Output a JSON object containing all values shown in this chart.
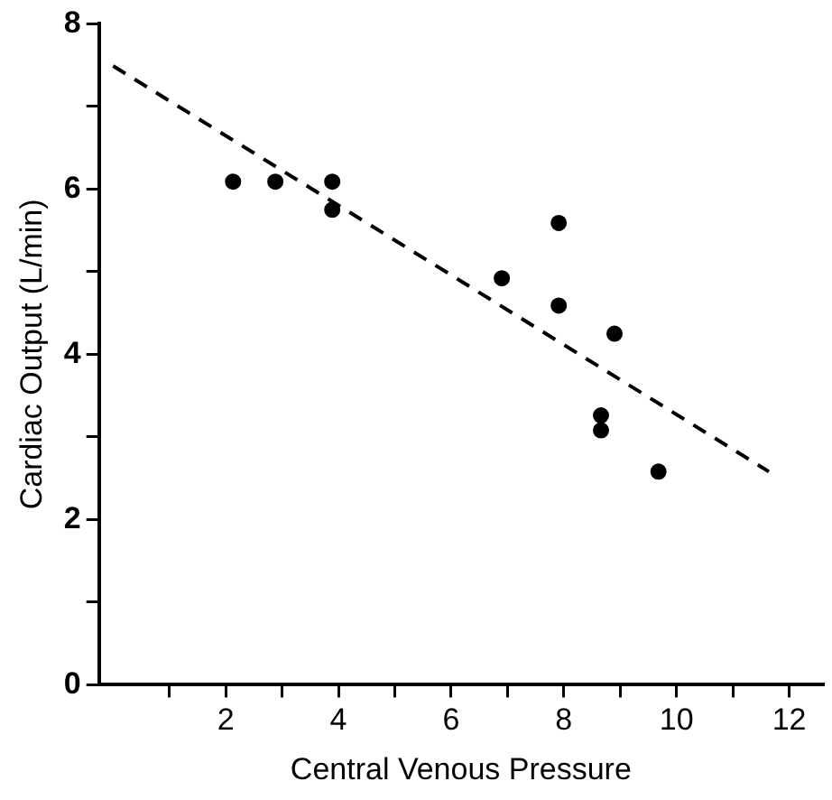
{
  "chart_data": {
    "type": "scatter",
    "xlabel": "Central Venous Pressure",
    "ylabel": "Cardiac Output (L/min)",
    "series": [
      {
        "color": "#000000",
        "marker": "circle",
        "x": [
          2.13,
          2.88,
          3.89,
          3.89,
          6.9,
          7.91,
          7.91,
          8.9,
          8.66,
          8.66,
          9.68
        ],
        "values": [
          6.09,
          6.09,
          6.09,
          5.75,
          4.92,
          5.59,
          4.59,
          4.25,
          3.26,
          3.08,
          2.58
        ]
      },
      {
        "type": "line",
        "color": "#000000",
        "marker": "none",
        "line_style": "dashed",
        "x": [
          0,
          11.64
        ],
        "values": [
          7.49,
          2.58
        ]
      }
    ],
    "xlim": [
      -0.25,
      12.6
    ],
    "ylim": [
      0,
      8
    ],
    "xticks": [
      {
        "value": 1,
        "label": null
      },
      2,
      {
        "value": 3,
        "label": null
      },
      4,
      {
        "value": 5,
        "label": null
      },
      6,
      {
        "value": 7,
        "label": null
      },
      8,
      {
        "value": 9,
        "label": null
      },
      10,
      {
        "value": 11,
        "label": null
      },
      12
    ],
    "yticks": [
      0,
      {
        "value": 1,
        "label": null
      },
      2,
      {
        "value": 3,
        "label": null
      },
      4,
      {
        "value": 5,
        "label": null
      },
      6,
      {
        "value": 7,
        "label": null
      },
      8
    ],
    "grid": false,
    "legend": false
  }
}
